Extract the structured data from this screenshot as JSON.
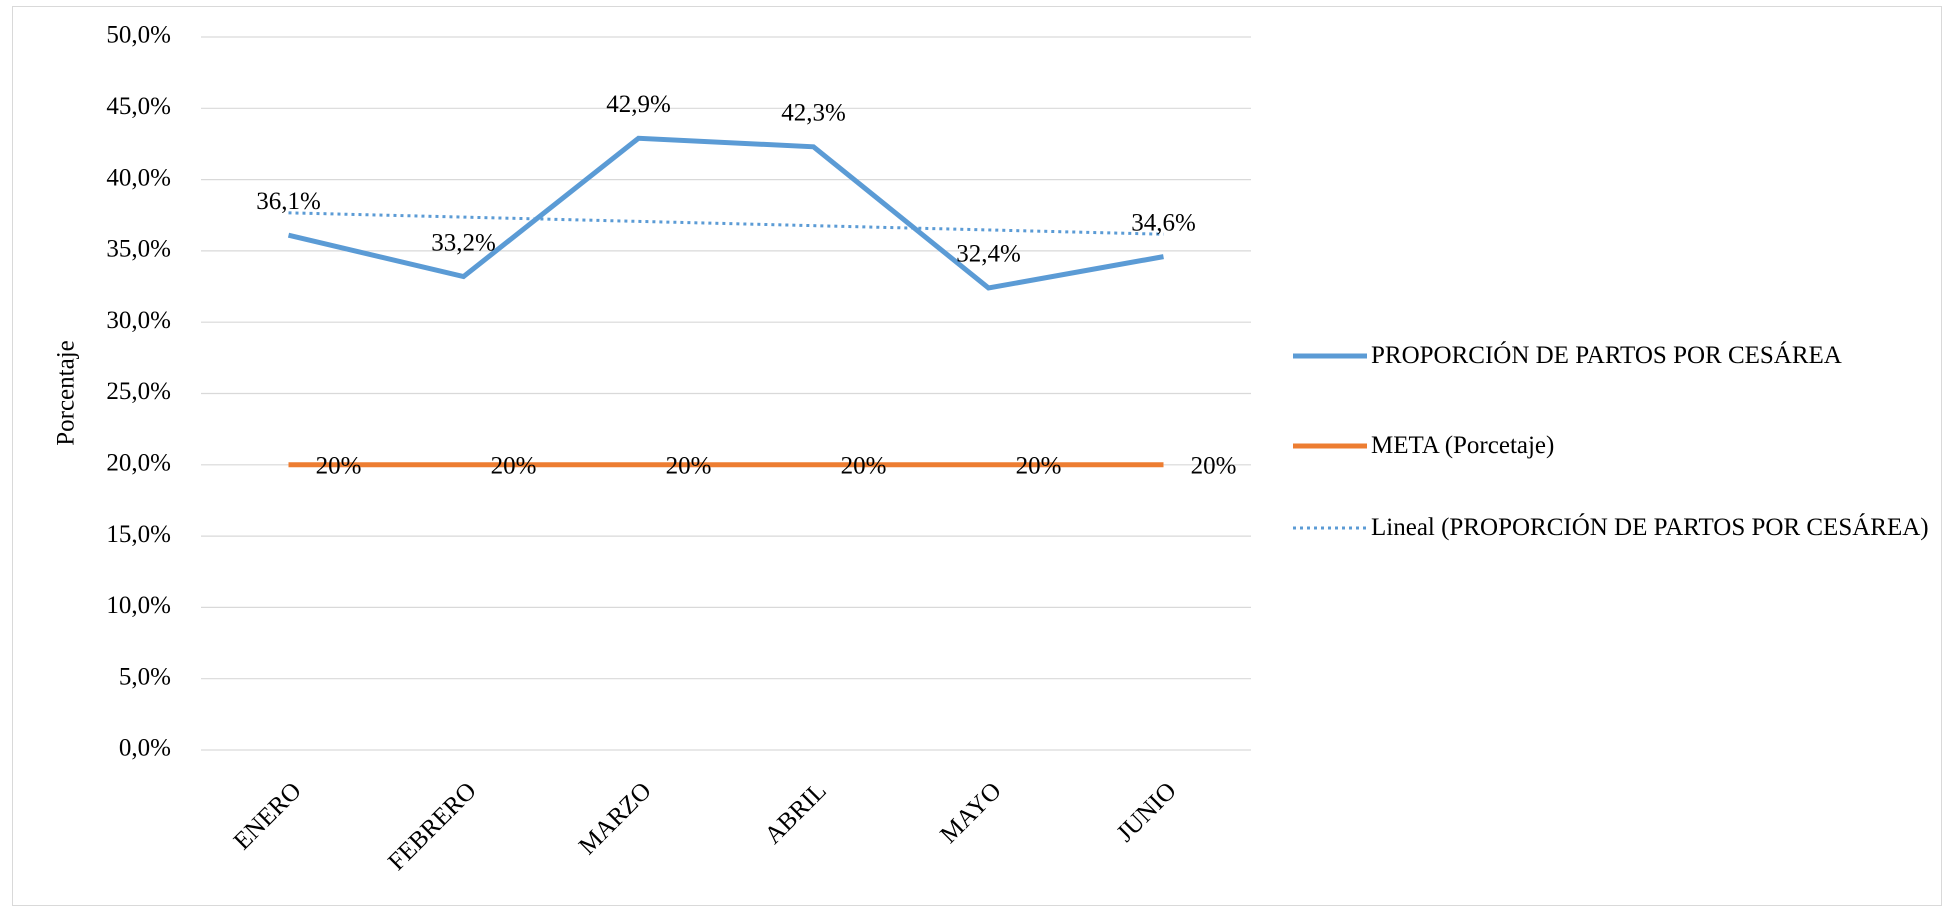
{
  "chart_data": {
    "type": "line",
    "y_label": "Porcentaje",
    "categories": [
      "ENERO",
      "FEBRERO",
      "MARZO",
      "ABRIL",
      "MAYO",
      "JUNIO"
    ],
    "series": [
      {
        "name": "PROPORCIÓN DE PARTOS POR CESÁREA",
        "color": "#5b9bd5",
        "style": "solid",
        "values": [
          36.1,
          33.2,
          42.9,
          42.3,
          32.4,
          34.6
        ],
        "value_labels": [
          "36,1%",
          "33,2%",
          "42,9%",
          "42,3%",
          "32,4%",
          "34,6%"
        ]
      },
      {
        "name": "META (Porcetaje)",
        "color": "#ed7d31",
        "style": "solid",
        "values": [
          20,
          20,
          20,
          20,
          20,
          20
        ],
        "value_labels": [
          "20%",
          "20%",
          "20%",
          "20%",
          "20%",
          "20%"
        ]
      },
      {
        "name": "Lineal (PROPORCIÓN DE PARTOS POR CESÁREA)",
        "color": "#5b9bd5",
        "style": "dotted",
        "values": [
          37.67,
          37.37,
          37.07,
          36.77,
          36.47,
          36.17
        ]
      }
    ],
    "ylim": [
      0,
      50
    ],
    "yticks": [
      {
        "value": 0,
        "label": "0,0%"
      },
      {
        "value": 5,
        "label": "5,0%"
      },
      {
        "value": 10,
        "label": "10,0%"
      },
      {
        "value": 15,
        "label": "15,0%"
      },
      {
        "value": 20,
        "label": "20,0%"
      },
      {
        "value": 25,
        "label": "25,0%"
      },
      {
        "value": 30,
        "label": "30,0%"
      },
      {
        "value": 35,
        "label": "35,0%"
      },
      {
        "value": 40,
        "label": "40,0%"
      },
      {
        "value": 45,
        "label": "45,0%"
      },
      {
        "value": 50,
        "label": "50,0%"
      }
    ],
    "grid": true,
    "legend": "right"
  }
}
